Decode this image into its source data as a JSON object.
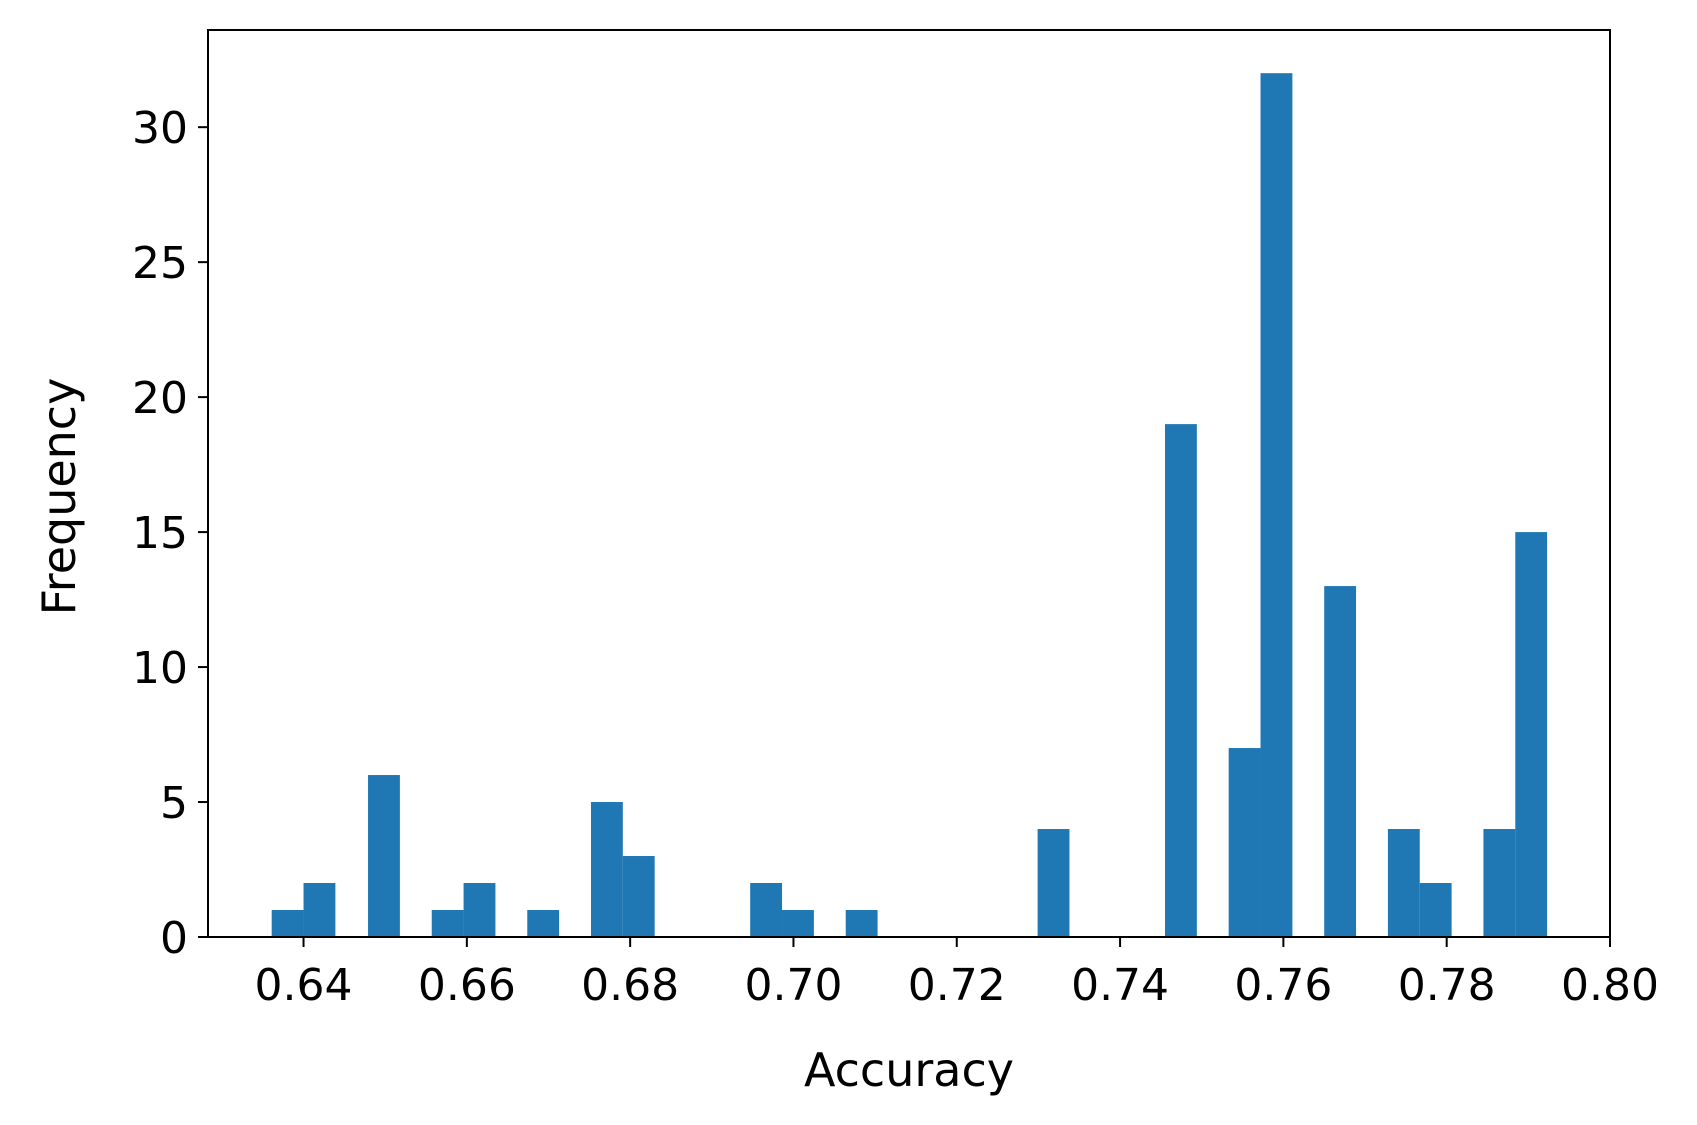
{
  "chart_data": {
    "type": "bar",
    "subtype": "histogram",
    "title": "",
    "xlabel": "Accuracy",
    "ylabel": "Frequency",
    "xlim": [
      0.6283,
      0.8
    ],
    "ylim": [
      0,
      33.6
    ],
    "bin_width": 0.00391,
    "bar_color": "#1f77b4",
    "grid": false,
    "legend": "none",
    "x_ticks": [
      {
        "value": 0.64,
        "label": "0.64"
      },
      {
        "value": 0.66,
        "label": "0.66"
      },
      {
        "value": 0.68,
        "label": "0.68"
      },
      {
        "value": 0.7,
        "label": "0.70"
      },
      {
        "value": 0.72,
        "label": "0.72"
      },
      {
        "value": 0.74,
        "label": "0.74"
      },
      {
        "value": 0.76,
        "label": "0.76"
      },
      {
        "value": 0.78,
        "label": "0.78"
      },
      {
        "value": 0.8,
        "label": "0.80"
      }
    ],
    "y_ticks": [
      {
        "value": 0,
        "label": "0"
      },
      {
        "value": 5,
        "label": "5"
      },
      {
        "value": 10,
        "label": "10"
      },
      {
        "value": 15,
        "label": "15"
      },
      {
        "value": 20,
        "label": "20"
      },
      {
        "value": 25,
        "label": "25"
      },
      {
        "value": 30,
        "label": "30"
      }
    ],
    "bins": [
      {
        "x0": 0.6361,
        "x1": 0.64,
        "count": 1
      },
      {
        "x0": 0.64,
        "x1": 0.6439,
        "count": 2
      },
      {
        "x0": 0.6479,
        "x1": 0.6518,
        "count": 6
      },
      {
        "x0": 0.6557,
        "x1": 0.6596,
        "count": 1
      },
      {
        "x0": 0.6596,
        "x1": 0.6635,
        "count": 2
      },
      {
        "x0": 0.6674,
        "x1": 0.6713,
        "count": 1
      },
      {
        "x0": 0.6752,
        "x1": 0.6791,
        "count": 5
      },
      {
        "x0": 0.6791,
        "x1": 0.683,
        "count": 3
      },
      {
        "x0": 0.6947,
        "x1": 0.6986,
        "count": 2
      },
      {
        "x0": 0.6986,
        "x1": 0.7025,
        "count": 1
      },
      {
        "x0": 0.7064,
        "x1": 0.7103,
        "count": 1
      },
      {
        "x0": 0.7299,
        "x1": 0.7338,
        "count": 4
      },
      {
        "x0": 0.7455,
        "x1": 0.7494,
        "count": 19
      },
      {
        "x0": 0.7533,
        "x1": 0.7572,
        "count": 7
      },
      {
        "x0": 0.7572,
        "x1": 0.7611,
        "count": 32
      },
      {
        "x0": 0.765,
        "x1": 0.7689,
        "count": 13
      },
      {
        "x0": 0.7728,
        "x1": 0.7767,
        "count": 4
      },
      {
        "x0": 0.7767,
        "x1": 0.7806,
        "count": 2
      },
      {
        "x0": 0.7845,
        "x1": 0.7884,
        "count": 4
      },
      {
        "x0": 0.7884,
        "x1": 0.7923,
        "count": 15
      }
    ]
  }
}
